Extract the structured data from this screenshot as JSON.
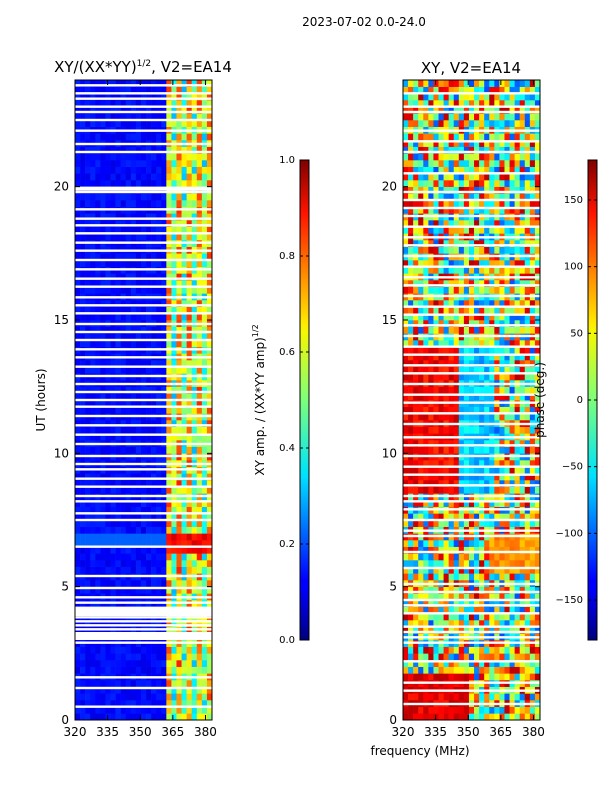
{
  "figure_title": "2023-07-02 0.0-24.0",
  "chart_data": [
    {
      "type": "heatmap",
      "title": "XY/(XX*YY)^1/2, V2=EA14",
      "title_main": "XY/(XX*YY)",
      "title_exp": "1/2",
      "title_tail": ", V2=EA14",
      "xlabel": "",
      "ylabel": "UT (hours)",
      "xlim": [
        320,
        383
      ],
      "ylim": [
        0,
        24
      ],
      "xticks": [
        "320",
        "335",
        "350",
        "365",
        "380"
      ],
      "xtick_values": [
        320,
        335,
        350,
        365,
        380
      ],
      "yticks": [
        "0",
        "5",
        "10",
        "15",
        "20"
      ],
      "ytick_values": [
        0,
        5,
        10,
        15,
        20
      ],
      "colorbar": {
        "label": "XY amp. / (XX*YY amp)^1/2",
        "label_main": "XY amp. / (XX*YY amp)",
        "label_exp": "1/2",
        "range": [
          0.0,
          1.0
        ],
        "ticks": [
          "0.0",
          "0.2",
          "0.4",
          "0.6",
          "0.8",
          "1.0"
        ],
        "tick_values": [
          0.0,
          0.2,
          0.4,
          0.6,
          0.8,
          1.0
        ],
        "colormap": "jet"
      },
      "gap_hours": [
        0.5,
        1.2,
        1.6,
        2.9,
        3.05,
        3.2,
        3.4,
        3.55,
        3.7,
        3.85,
        4.0,
        4.2,
        4.4,
        4.6,
        4.95,
        5.4,
        6.5,
        7.5,
        7.75,
        8.2,
        8.4,
        8.75,
        9.05,
        9.4,
        9.6,
        9.9,
        10.35,
        10.7,
        11.05,
        11.4,
        11.75,
        12.0,
        12.3,
        12.6,
        12.9,
        13.25,
        13.6,
        13.9,
        14.25,
        14.55,
        14.85,
        15.25,
        15.55,
        15.85,
        16.25,
        16.55,
        16.9,
        17.25,
        17.6,
        17.9,
        18.25,
        18.55,
        18.8,
        19.15,
        19.8,
        19.95,
        21.3,
        21.6,
        22.1,
        22.5,
        22.8,
        23.0,
        23.3,
        23.5,
        23.8
      ],
      "gap_ranges": [
        [
          3.0,
          3.3
        ],
        [
          3.9,
          4.2
        ],
        [
          4.0,
          4.25
        ],
        [
          19.85,
          20.0
        ]
      ],
      "amp_notes": "Mostly low amplitude (dark blue) below 361 MHz; elevated amplitude 0.3-0.9 in channels 361-383 MHz; red band near 6.5 h."
    },
    {
      "type": "heatmap",
      "title": "XY, V2=EA14",
      "xlabel": "frequency (MHz)",
      "ylabel": "",
      "xlim": [
        320,
        383
      ],
      "ylim": [
        0,
        24
      ],
      "xticks": [
        "320",
        "335",
        "350",
        "365",
        "380"
      ],
      "xtick_values": [
        320,
        335,
        350,
        365,
        380
      ],
      "yticks": [
        "0",
        "5",
        "10",
        "15",
        "20"
      ],
      "ytick_values": [
        0,
        5,
        10,
        15,
        20
      ],
      "colorbar": {
        "label": "phase (deg.)",
        "range": [
          -180,
          180
        ],
        "ticks": [
          "−150",
          "−100",
          "−50",
          "0",
          "50",
          "100",
          "150"
        ],
        "tick_values": [
          -150,
          -100,
          -50,
          0,
          50,
          100,
          150
        ],
        "colormap": "jet"
      },
      "gap_hours": [
        0.6,
        1.1,
        1.4,
        2.2,
        2.9,
        3.1,
        3.3,
        3.5,
        4.0,
        4.3,
        4.5,
        4.8,
        5.1,
        5.7,
        6.3,
        6.9,
        7.1,
        7.5,
        7.9,
        8.2,
        8.4,
        8.8,
        9.2,
        9.5,
        9.9,
        10.3,
        10.6,
        11.1,
        11.5,
        11.9,
        12.2,
        12.6,
        13.0,
        13.3,
        13.7,
        14.0,
        14.4,
        14.8,
        15.2,
        15.5,
        15.9,
        16.3,
        16.6,
        17.0,
        17.4,
        17.8,
        18.1,
        18.5,
        18.9,
        19.2,
        19.5,
        19.8,
        20.5,
        21.3,
        21.7,
        22.1,
        22.8,
        23.0,
        23.5
      ],
      "phase_notes": "Phase near +150 (red) at low frequencies 320-345 MHz from ~9-14 h; near -50 (cyan/blue) at 345-360 MHz; mixed phases elsewhere."
    }
  ]
}
